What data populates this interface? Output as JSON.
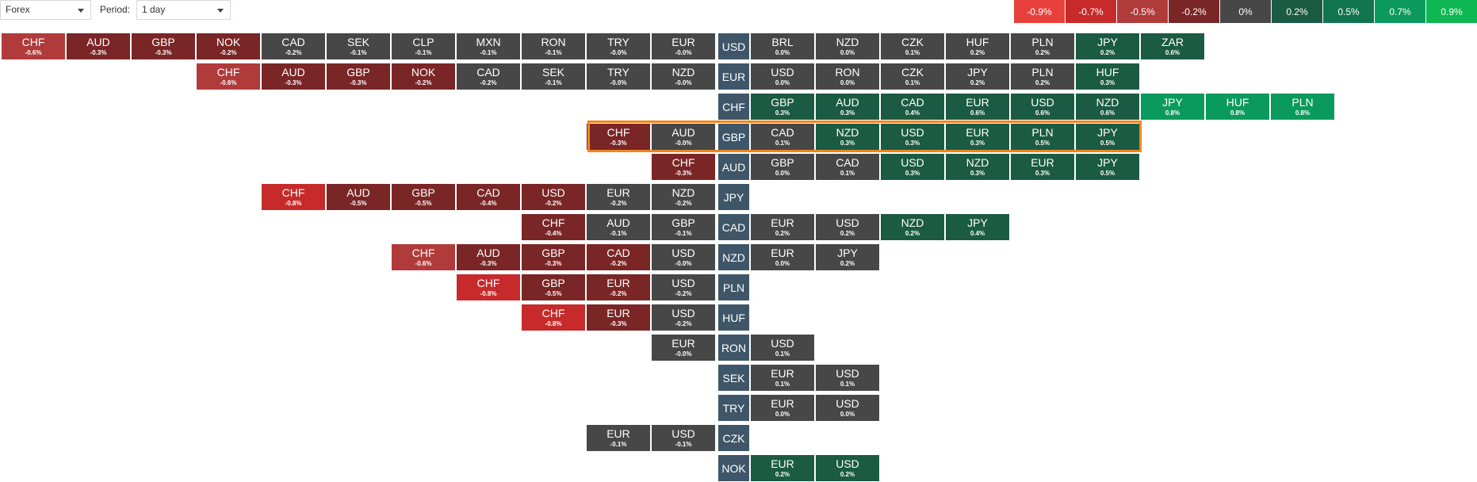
{
  "toolbar": {
    "market_select": "Forex",
    "period_label": "Period:",
    "period_select": "1 day"
  },
  "legend": [
    {
      "label": "-0.9%",
      "color": "#e8403a"
    },
    {
      "label": "-0.7%",
      "color": "#c62a2a"
    },
    {
      "label": "-0.5%",
      "color": "#b13b3b"
    },
    {
      "label": "-0.2%",
      "color": "#7a2626"
    },
    {
      "label": "0%",
      "color": "#474747"
    },
    {
      "label": "0.2%",
      "color": "#1b5a43"
    },
    {
      "label": "0.5%",
      "color": "#10744f"
    },
    {
      "label": "0.7%",
      "color": "#0b9a5d"
    },
    {
      "label": "0.9%",
      "color": "#0fb752"
    }
  ],
  "colors": {
    "neutral": "#474747",
    "red_dark": "#7a2626",
    "red_mid": "#b13b3b",
    "red_bright": "#c62a2a",
    "green_dark": "#1b5a43",
    "green_bright": "#0b9a5d",
    "base_bg": "#3e5667",
    "highlight": "#f0861d"
  },
  "rows": [
    {
      "base": "USD",
      "left": [
        [
          "CHF",
          "-0.6%",
          "red_mid"
        ],
        [
          "AUD",
          "-0.3%",
          "red_dark"
        ],
        [
          "GBP",
          "-0.3%",
          "red_dark"
        ],
        [
          "NOK",
          "-0.2%",
          "red_dark"
        ],
        [
          "CAD",
          "-0.2%",
          "neutral"
        ],
        [
          "SEK",
          "-0.1%",
          "neutral"
        ],
        [
          "CLP",
          "-0.1%",
          "neutral"
        ],
        [
          "MXN",
          "-0.1%",
          "neutral"
        ],
        [
          "RON",
          "-0.1%",
          "neutral"
        ],
        [
          "TRY",
          "-0.0%",
          "neutral"
        ],
        [
          "EUR",
          "-0.0%",
          "neutral"
        ]
      ],
      "right": [
        [
          "BRL",
          "0.0%",
          "neutral"
        ],
        [
          "NZD",
          "0.0%",
          "neutral"
        ],
        [
          "CZK",
          "0.1%",
          "neutral"
        ],
        [
          "HUF",
          "0.2%",
          "neutral"
        ],
        [
          "PLN",
          "0.2%",
          "neutral"
        ],
        [
          "JPY",
          "0.2%",
          "green_dark"
        ],
        [
          "ZAR",
          "0.6%",
          "green_dark"
        ]
      ]
    },
    {
      "base": "EUR",
      "left": [
        [
          "CHF",
          "-0.6%",
          "red_mid"
        ],
        [
          "AUD",
          "-0.3%",
          "red_dark"
        ],
        [
          "GBP",
          "-0.3%",
          "red_dark"
        ],
        [
          "NOK",
          "-0.2%",
          "red_dark"
        ],
        [
          "CAD",
          "-0.2%",
          "neutral"
        ],
        [
          "SEK",
          "-0.1%",
          "neutral"
        ],
        [
          "TRY",
          "-0.0%",
          "neutral"
        ],
        [
          "NZD",
          "-0.0%",
          "neutral"
        ]
      ],
      "right": [
        [
          "USD",
          "0.0%",
          "neutral"
        ],
        [
          "RON",
          "0.0%",
          "neutral"
        ],
        [
          "CZK",
          "0.1%",
          "neutral"
        ],
        [
          "JPY",
          "0.2%",
          "neutral"
        ],
        [
          "PLN",
          "0.2%",
          "neutral"
        ],
        [
          "HUF",
          "0.3%",
          "green_dark"
        ]
      ]
    },
    {
      "base": "CHF",
      "left": [],
      "right": [
        [
          "GBP",
          "0.3%",
          "green_dark"
        ],
        [
          "AUD",
          "0.3%",
          "green_dark"
        ],
        [
          "CAD",
          "0.4%",
          "green_dark"
        ],
        [
          "EUR",
          "0.6%",
          "green_dark"
        ],
        [
          "USD",
          "0.6%",
          "green_dark"
        ],
        [
          "NZD",
          "0.6%",
          "green_dark"
        ],
        [
          "JPY",
          "0.8%",
          "green_bright"
        ],
        [
          "HUF",
          "0.8%",
          "green_bright"
        ],
        [
          "PLN",
          "0.8%",
          "green_bright"
        ]
      ]
    },
    {
      "base": "GBP",
      "left": [
        [
          "CHF",
          "-0.3%",
          "red_dark"
        ],
        [
          "AUD",
          "-0.0%",
          "neutral"
        ]
      ],
      "right": [
        [
          "CAD",
          "0.1%",
          "neutral"
        ],
        [
          "NZD",
          "0.3%",
          "green_dark"
        ],
        [
          "USD",
          "0.3%",
          "green_dark"
        ],
        [
          "EUR",
          "0.3%",
          "green_dark"
        ],
        [
          "PLN",
          "0.5%",
          "green_dark"
        ],
        [
          "JPY",
          "0.5%",
          "green_dark"
        ]
      ]
    },
    {
      "base": "AUD",
      "left": [
        [
          "CHF",
          "-0.3%",
          "red_dark"
        ]
      ],
      "right": [
        [
          "GBP",
          "0.0%",
          "neutral"
        ],
        [
          "CAD",
          "0.1%",
          "neutral"
        ],
        [
          "USD",
          "0.3%",
          "green_dark"
        ],
        [
          "NZD",
          "0.3%",
          "green_dark"
        ],
        [
          "EUR",
          "0.3%",
          "green_dark"
        ],
        [
          "JPY",
          "0.5%",
          "green_dark"
        ]
      ]
    },
    {
      "base": "JPY",
      "left": [
        [
          "CHF",
          "-0.8%",
          "red_bright"
        ],
        [
          "AUD",
          "-0.5%",
          "red_dark"
        ],
        [
          "GBP",
          "-0.5%",
          "red_dark"
        ],
        [
          "CAD",
          "-0.4%",
          "red_dark"
        ],
        [
          "USD",
          "-0.2%",
          "red_dark"
        ],
        [
          "EUR",
          "-0.2%",
          "neutral"
        ],
        [
          "NZD",
          "-0.2%",
          "neutral"
        ]
      ],
      "right": []
    },
    {
      "base": "CAD",
      "left": [
        [
          "CHF",
          "-0.4%",
          "red_dark"
        ],
        [
          "AUD",
          "-0.1%",
          "neutral"
        ],
        [
          "GBP",
          "-0.1%",
          "neutral"
        ]
      ],
      "right": [
        [
          "EUR",
          "0.2%",
          "neutral"
        ],
        [
          "USD",
          "0.2%",
          "neutral"
        ],
        [
          "NZD",
          "0.2%",
          "green_dark"
        ],
        [
          "JPY",
          "0.4%",
          "green_dark"
        ]
      ]
    },
    {
      "base": "NZD",
      "left": [
        [
          "CHF",
          "-0.6%",
          "red_mid"
        ],
        [
          "AUD",
          "-0.3%",
          "red_dark"
        ],
        [
          "GBP",
          "-0.3%",
          "red_dark"
        ],
        [
          "CAD",
          "-0.2%",
          "red_dark"
        ],
        [
          "USD",
          "-0.0%",
          "neutral"
        ]
      ],
      "right": [
        [
          "EUR",
          "0.0%",
          "neutral"
        ],
        [
          "JPY",
          "0.2%",
          "neutral"
        ]
      ]
    },
    {
      "base": "PLN",
      "left": [
        [
          "CHF",
          "-0.8%",
          "red_bright"
        ],
        [
          "GBP",
          "-0.5%",
          "red_dark"
        ],
        [
          "EUR",
          "-0.2%",
          "red_dark"
        ],
        [
          "USD",
          "-0.2%",
          "neutral"
        ]
      ],
      "right": []
    },
    {
      "base": "HUF",
      "left": [
        [
          "CHF",
          "-0.8%",
          "red_bright"
        ],
        [
          "EUR",
          "-0.3%",
          "red_dark"
        ],
        [
          "USD",
          "-0.2%",
          "neutral"
        ]
      ],
      "right": []
    },
    {
      "base": "RON",
      "left": [
        [
          "EUR",
          "-0.0%",
          "neutral"
        ]
      ],
      "right": [
        [
          "USD",
          "0.1%",
          "neutral"
        ]
      ]
    },
    {
      "base": "SEK",
      "left": [],
      "right": [
        [
          "EUR",
          "0.1%",
          "neutral"
        ],
        [
          "USD",
          "0.1%",
          "neutral"
        ]
      ]
    },
    {
      "base": "TRY",
      "left": [],
      "right": [
        [
          "EUR",
          "0.0%",
          "neutral"
        ],
        [
          "USD",
          "0.0%",
          "neutral"
        ]
      ]
    },
    {
      "base": "CZK",
      "left": [
        [
          "EUR",
          "-0.1%",
          "neutral"
        ],
        [
          "USD",
          "-0.1%",
          "neutral"
        ]
      ],
      "right": []
    },
    {
      "base": "NOK",
      "left": [],
      "right": [
        [
          "EUR",
          "0.2%",
          "green_dark"
        ],
        [
          "USD",
          "0.2%",
          "green_dark"
        ]
      ]
    }
  ]
}
